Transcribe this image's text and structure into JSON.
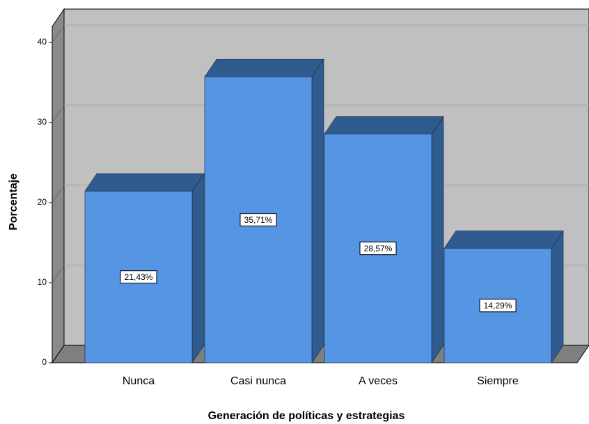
{
  "chart_data": {
    "type": "bar",
    "categories": [
      "Nunca",
      "Casi nunca",
      "A veces",
      "Siempre"
    ],
    "values": [
      21.43,
      35.71,
      28.57,
      14.29
    ],
    "value_labels": [
      "21,43%",
      "35,71%",
      "28,57%",
      "14,29%"
    ],
    "color": "#5595e3",
    "ylim": [
      0,
      42
    ],
    "yticks": [
      0,
      10,
      20,
      30,
      40
    ],
    "grid": true,
    "xlabel": "Generación de políticas y estrategias",
    "ylabel": "Porcentaje"
  }
}
